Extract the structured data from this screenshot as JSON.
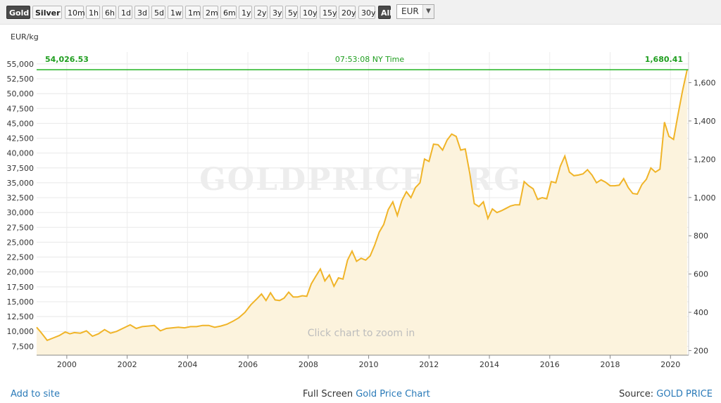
{
  "toolbar": {
    "metals": [
      {
        "label": "Gold",
        "active": true
      },
      {
        "label": "Silver",
        "active": false
      }
    ],
    "ranges": [
      "10m",
      "1h",
      "6h",
      "1d",
      "3d",
      "5d",
      "1w",
      "1m",
      "2m",
      "6m",
      "1y",
      "2y",
      "3y",
      "5y",
      "10y",
      "15y",
      "20y",
      "30y",
      "All"
    ],
    "active_range": "All",
    "currency": "EUR"
  },
  "chart_data": {
    "type": "area",
    "ylabel": "EUR/kg",
    "y_ticks": [
      "7,500",
      "10,000",
      "12,500",
      "15,000",
      "17,500",
      "20,000",
      "22,500",
      "25,000",
      "27,500",
      "30,000",
      "32,500",
      "35,000",
      "37,500",
      "40,000",
      "42,500",
      "45,000",
      "47,500",
      "50,000",
      "52,500",
      "55,000"
    ],
    "y_right_ticks": [
      "200",
      "400",
      "600",
      "800",
      "1,000",
      "1,200",
      "1,400",
      "1,600"
    ],
    "x_ticks": [
      "2000",
      "2002",
      "2004",
      "2006",
      "2008",
      "2010",
      "2012",
      "2014",
      "2016",
      "2018",
      "2020"
    ],
    "ylim": [
      6000,
      57000
    ],
    "xlim": [
      1999.0,
      2020.6
    ],
    "grid": true,
    "current_value_left": "54,026.53",
    "current_value_right": "1,680.41",
    "current_time": "07:53:08 NY Time",
    "current_line_value": 54026.53,
    "watermark": "GOLDPRICE.ORG",
    "hint": "Click chart to zoom in",
    "line_color": "#f0b428",
    "fill_color": "#fcf3dd",
    "current_line_color": "#22b322",
    "series": [
      {
        "x": [
          1999.0,
          1999.15,
          1999.35,
          1999.55,
          1999.75,
          1999.95,
          2000.1,
          2000.25,
          2000.45,
          2000.65,
          2000.85,
          2001.05,
          2001.25,
          2001.45,
          2001.65,
          2001.85,
          2002.1,
          2002.3,
          2002.5,
          2002.7,
          2002.9,
          2003.1,
          2003.3,
          2003.5,
          2003.7,
          2003.9,
          2004.1,
          2004.3,
          2004.5,
          2004.7,
          2004.9,
          2005.1,
          2005.3,
          2005.5,
          2005.7,
          2005.9,
          2006.1,
          2006.3,
          2006.45,
          2006.6,
          2006.75,
          2006.9,
          2007.05,
          2007.2,
          2007.35,
          2007.5,
          2007.65,
          2007.8,
          2007.95,
          2008.1,
          2008.25,
          2008.4,
          2008.55,
          2008.7,
          2008.85,
          2009.0,
          2009.15,
          2009.3,
          2009.45,
          2009.6,
          2009.75,
          2009.9,
          2010.05,
          2010.2,
          2010.35,
          2010.5,
          2010.65,
          2010.8,
          2010.95,
          2011.1,
          2011.25,
          2011.4,
          2011.55,
          2011.7,
          2011.85,
          2012.0,
          2012.15,
          2012.3,
          2012.45,
          2012.6,
          2012.75,
          2012.9,
          2013.05,
          2013.2,
          2013.35,
          2013.5,
          2013.65,
          2013.8,
          2013.95,
          2014.1,
          2014.25,
          2014.4,
          2014.55,
          2014.7,
          2014.85,
          2015.0,
          2015.15,
          2015.3,
          2015.45,
          2015.6,
          2015.75,
          2015.9,
          2016.05,
          2016.2,
          2016.35,
          2016.5,
          2016.65,
          2016.8,
          2016.95,
          2017.1,
          2017.25,
          2017.4,
          2017.55,
          2017.7,
          2017.85,
          2018.0,
          2018.15,
          2018.3,
          2018.45,
          2018.6,
          2018.75,
          2018.9,
          2019.05,
          2019.2,
          2019.35,
          2019.5,
          2019.65,
          2019.8,
          2019.95,
          2020.1,
          2020.25,
          2020.4,
          2020.55
        ],
        "y": [
          10700,
          9800,
          8500,
          8900,
          9300,
          9900,
          9600,
          9800,
          9700,
          10100,
          9200,
          9600,
          10300,
          9700,
          10000,
          10500,
          11100,
          10500,
          10800,
          10900,
          11000,
          10100,
          10500,
          10600,
          10700,
          10600,
          10800,
          10800,
          11000,
          11000,
          10700,
          10900,
          11200,
          11700,
          12300,
          13200,
          14500,
          15500,
          16300,
          15200,
          16500,
          15300,
          15200,
          15600,
          16600,
          15800,
          15800,
          16000,
          15900,
          18000,
          19300,
          20500,
          18500,
          19500,
          17600,
          19000,
          18800,
          22000,
          23500,
          21800,
          22300,
          22000,
          22700,
          24500,
          26700,
          28000,
          30500,
          31800,
          29500,
          32000,
          33500,
          32500,
          34200,
          35000,
          39000,
          38600,
          41500,
          41400,
          40500,
          42200,
          43200,
          42800,
          40500,
          40700,
          36600,
          31500,
          31000,
          31800,
          29000,
          30600,
          30000,
          30300,
          30700,
          31100,
          31300,
          31300,
          35200,
          34500,
          34000,
          32200,
          32500,
          32300,
          35200,
          35000,
          37800,
          39500,
          36800,
          36200,
          36300,
          36500,
          37200,
          36300,
          35000,
          35500,
          35100,
          34500,
          34500,
          34600,
          35700,
          34200,
          33200,
          33100,
          34700,
          35600,
          37500,
          36800,
          37300,
          45200,
          42800,
          42300,
          46500,
          50500,
          54026
        ]
      }
    ]
  },
  "footer": {
    "add_to_site": "Add to site",
    "fullscreen_prefix": "Full Screen",
    "fullscreen_link": "Gold Price Chart",
    "source_prefix": "Source:",
    "source_link": "GOLD PRICE"
  }
}
